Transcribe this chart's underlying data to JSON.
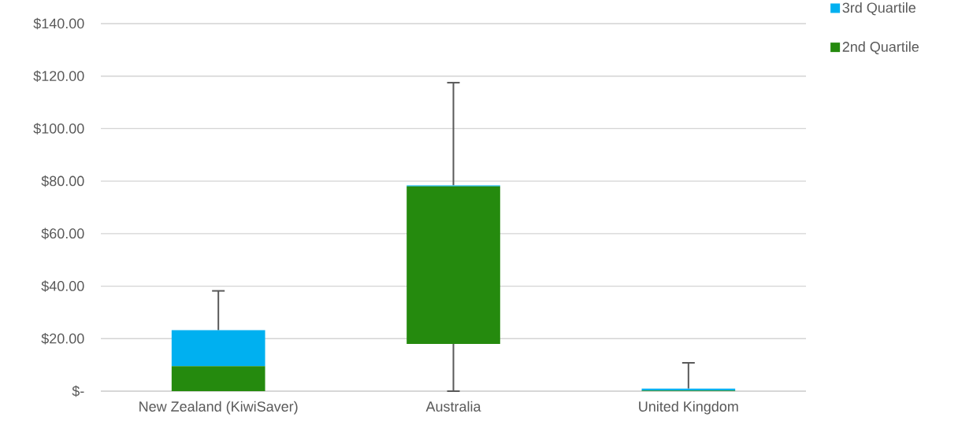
{
  "chart_data": {
    "type": "bar",
    "stacked": true,
    "categories": [
      "New Zealand (KiwiSaver)",
      "Australia",
      "United Kingdom"
    ],
    "series": [
      {
        "name": "2nd Quartile",
        "color": "#258a0e",
        "base": [
          0,
          18,
          0
        ],
        "values": [
          9.5,
          60,
          0.2
        ],
        "errors": [
          null,
          [
            0,
            18
          ],
          null
        ]
      },
      {
        "name": "3rd Quartile",
        "color": "#00b0f0",
        "values": [
          13.7,
          0.4,
          0.8
        ],
        "errors": [
          [
            23.2,
            38.2
          ],
          [
            78.4,
            117.5
          ],
          [
            1,
            10.8
          ]
        ]
      }
    ],
    "ylim": [
      0,
      140
    ],
    "yticks": [
      {
        "value": 0,
        "label": "$-"
      },
      {
        "value": 20,
        "label": "$20.00"
      },
      {
        "value": 40,
        "label": "$40.00"
      },
      {
        "value": 60,
        "label": "$60.00"
      },
      {
        "value": 80,
        "label": "$80.00"
      },
      {
        "value": 100,
        "label": "$100.00"
      },
      {
        "value": 120,
        "label": "$120.00"
      },
      {
        "value": 140,
        "label": "$140.00"
      }
    ],
    "grid": "y",
    "legend": "top right"
  }
}
